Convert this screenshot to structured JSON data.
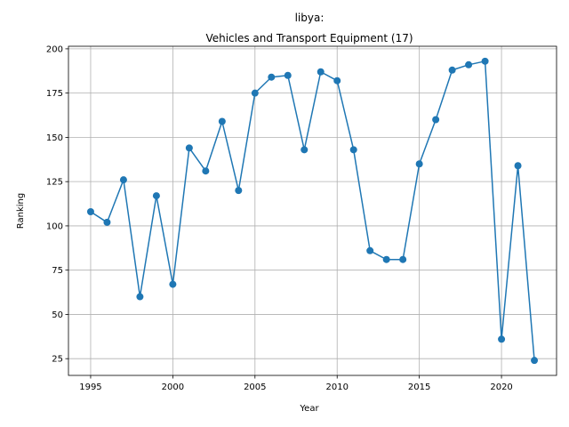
{
  "chart_data": {
    "type": "line",
    "title": "libya:",
    "subtitle": "Vehicles and Transport Equipment (17)",
    "xlabel": "Year",
    "ylabel": "Ranking",
    "xlim": [
      1993.65,
      2023.35
    ],
    "ylim": [
      15.55,
      201.45
    ],
    "xticks": [
      1995,
      2000,
      2005,
      2010,
      2015,
      2020
    ],
    "yticks": [
      25,
      50,
      75,
      100,
      125,
      150,
      175,
      200
    ],
    "grid": true,
    "legend": "none",
    "color": "#1f77b4",
    "series": [
      {
        "x": [
          1995,
          1996,
          1997,
          1998,
          1999,
          2000,
          2001,
          2002,
          2003,
          2004,
          2005,
          2006,
          2007,
          2008,
          2009,
          2010,
          2011,
          2012,
          2013,
          2014,
          2015,
          2016,
          2017,
          2018,
          2019,
          2020,
          2021,
          2022
        ],
        "y": [
          108,
          102,
          126,
          60,
          117,
          67,
          144,
          131,
          159,
          120,
          175,
          184,
          185,
          143,
          187,
          182,
          143,
          86,
          81,
          81,
          135,
          160,
          188,
          191,
          193,
          36,
          134,
          24
        ]
      }
    ]
  }
}
